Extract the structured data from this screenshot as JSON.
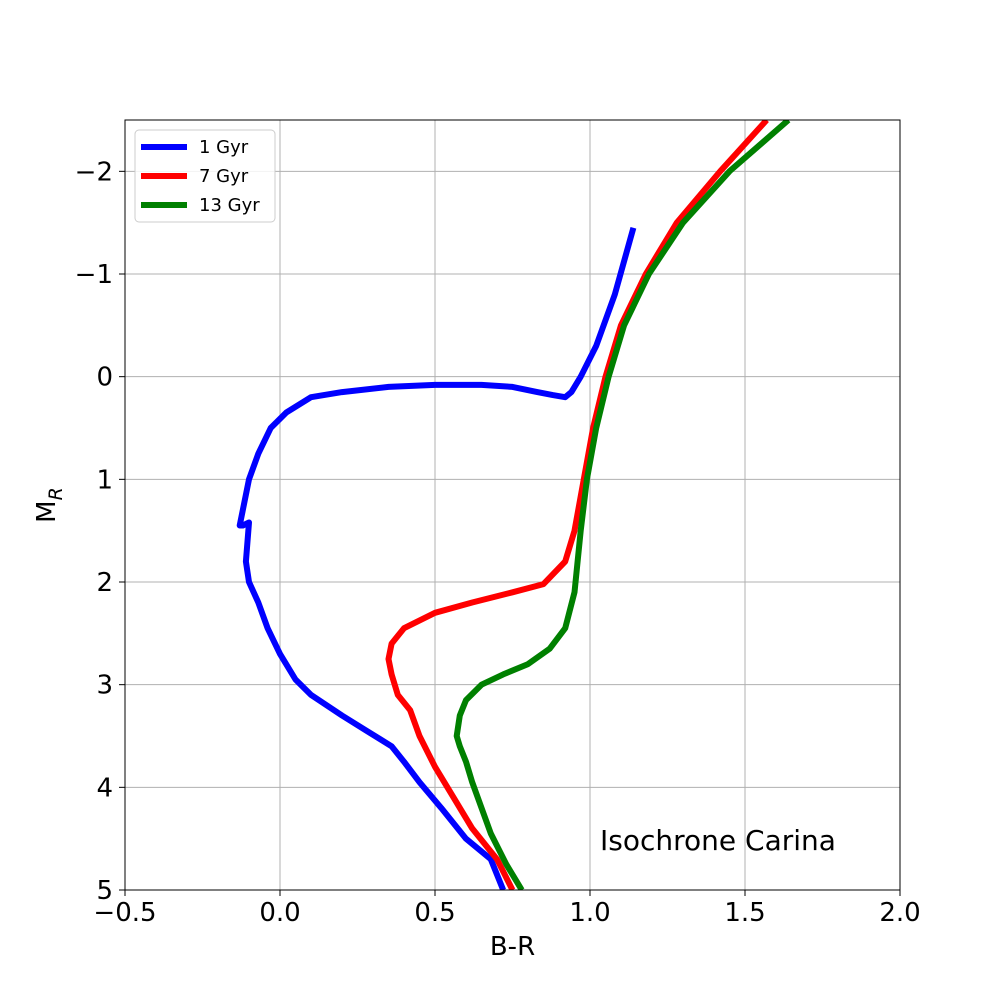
{
  "chart_data": {
    "type": "line",
    "title": "",
    "xlabel": "B-R",
    "ylabel_main": "M",
    "ylabel_sub": "R",
    "xlim": [
      -0.5,
      2.0
    ],
    "ylim": [
      5,
      -2.5
    ],
    "y_inverted": true,
    "grid": true,
    "legend_position": "upper-left",
    "x_ticks": [
      -0.5,
      0.0,
      0.5,
      1.0,
      1.5,
      2.0
    ],
    "x_tick_labels": [
      "−0.5",
      "0.0",
      "0.5",
      "1.0",
      "1.5",
      "2.0"
    ],
    "y_ticks": [
      -2,
      -1,
      0,
      1,
      2,
      3,
      4,
      5
    ],
    "y_tick_labels": [
      "−2",
      "−1",
      "0",
      "1",
      "2",
      "3",
      "4",
      "5"
    ],
    "annotation": "Isochrone Carina",
    "series": [
      {
        "name": "1 Gyr",
        "color": "#0000ff",
        "x": [
          0.72,
          0.68,
          0.6,
          0.52,
          0.45,
          0.4,
          0.36,
          0.28,
          0.2,
          0.1,
          0.05,
          0.0,
          -0.04,
          -0.07,
          -0.1,
          -0.11,
          -0.1,
          -0.1,
          -0.12,
          -0.13,
          -0.12,
          -0.1,
          -0.07,
          -0.03,
          0.02,
          0.1,
          0.2,
          0.35,
          0.5,
          0.65,
          0.75,
          0.83,
          0.88,
          0.92,
          0.94,
          0.97,
          1.02,
          1.08,
          1.14
        ],
        "y": [
          5.0,
          4.7,
          4.5,
          4.2,
          3.95,
          3.75,
          3.6,
          3.45,
          3.3,
          3.1,
          2.95,
          2.7,
          2.45,
          2.2,
          2.0,
          1.8,
          1.42,
          1.42,
          1.45,
          1.45,
          1.3,
          1.0,
          0.75,
          0.5,
          0.35,
          0.2,
          0.15,
          0.1,
          0.08,
          0.08,
          0.1,
          0.15,
          0.18,
          0.2,
          0.15,
          0.0,
          -0.3,
          -0.8,
          -1.45
        ]
      },
      {
        "name": "7 Gyr",
        "color": "#ff0000",
        "x": [
          0.75,
          0.7,
          0.62,
          0.56,
          0.5,
          0.45,
          0.42,
          0.38,
          0.36,
          0.35,
          0.36,
          0.4,
          0.5,
          0.62,
          0.75,
          0.85,
          0.92,
          0.95,
          0.98,
          1.01,
          1.05,
          1.1,
          1.18,
          1.28,
          1.42,
          1.57
        ],
        "y": [
          5.0,
          4.7,
          4.4,
          4.1,
          3.8,
          3.5,
          3.25,
          3.1,
          2.9,
          2.75,
          2.6,
          2.45,
          2.3,
          2.2,
          2.1,
          2.02,
          1.8,
          1.5,
          1.0,
          0.5,
          0.0,
          -0.5,
          -1.0,
          -1.5,
          -2.0,
          -2.5
        ]
      },
      {
        "name": "13 Gyr",
        "color": "#008000",
        "x": [
          0.78,
          0.73,
          0.68,
          0.65,
          0.62,
          0.6,
          0.58,
          0.57,
          0.58,
          0.6,
          0.65,
          0.72,
          0.8,
          0.87,
          0.92,
          0.95,
          0.97,
          0.99,
          1.02,
          1.06,
          1.11,
          1.19,
          1.3,
          1.45,
          1.64
        ],
        "y": [
          5.0,
          4.75,
          4.45,
          4.2,
          3.95,
          3.75,
          3.6,
          3.5,
          3.3,
          3.15,
          3.0,
          2.9,
          2.8,
          2.65,
          2.45,
          2.1,
          1.5,
          1.0,
          0.5,
          0.0,
          -0.5,
          -1.0,
          -1.5,
          -2.0,
          -2.5
        ]
      }
    ]
  }
}
